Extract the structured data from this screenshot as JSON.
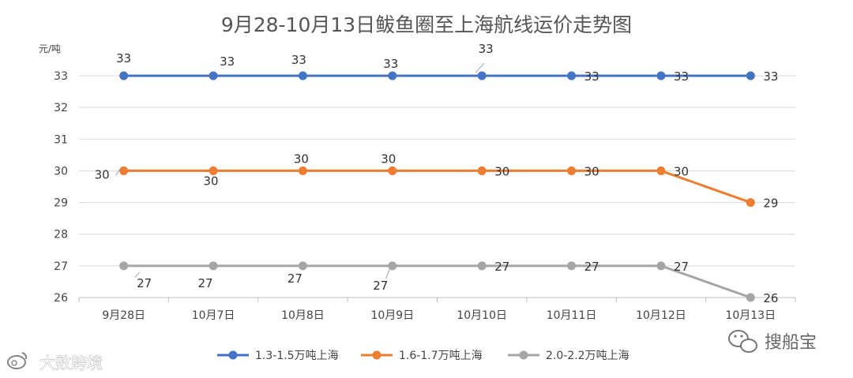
{
  "chart_data": {
    "type": "line",
    "title": "9月28-10月13日鲅鱼圈至上海航线运价走势图",
    "ylabel": "元/吨",
    "xlabel": "",
    "categories": [
      "9月28日",
      "10月7日",
      "10月8日",
      "10月9日",
      "10月10日",
      "10月11日",
      "10月12日",
      "10月13日"
    ],
    "ylim": [
      26,
      33
    ],
    "yticks": [
      26,
      27,
      28,
      29,
      30,
      31,
      32,
      33
    ],
    "grid": true,
    "legend_position": "bottom",
    "series": [
      {
        "name": "1.3-1.5万吨上海",
        "color": "#4472C4",
        "values": [
          33,
          33,
          33,
          33,
          33,
          33,
          33,
          33
        ]
      },
      {
        "name": "1.6-1.7万吨上海",
        "color": "#ED7D31",
        "values": [
          30,
          30,
          30,
          30,
          30,
          30,
          30,
          29
        ]
      },
      {
        "name": "2.0-2.2万吨上海",
        "color": "#A5A5A5",
        "values": [
          27,
          27,
          27,
          27,
          27,
          27,
          27,
          26
        ]
      }
    ]
  },
  "watermark": {
    "text": "大数跨境"
  },
  "brand": {
    "text": "搜船宝"
  }
}
